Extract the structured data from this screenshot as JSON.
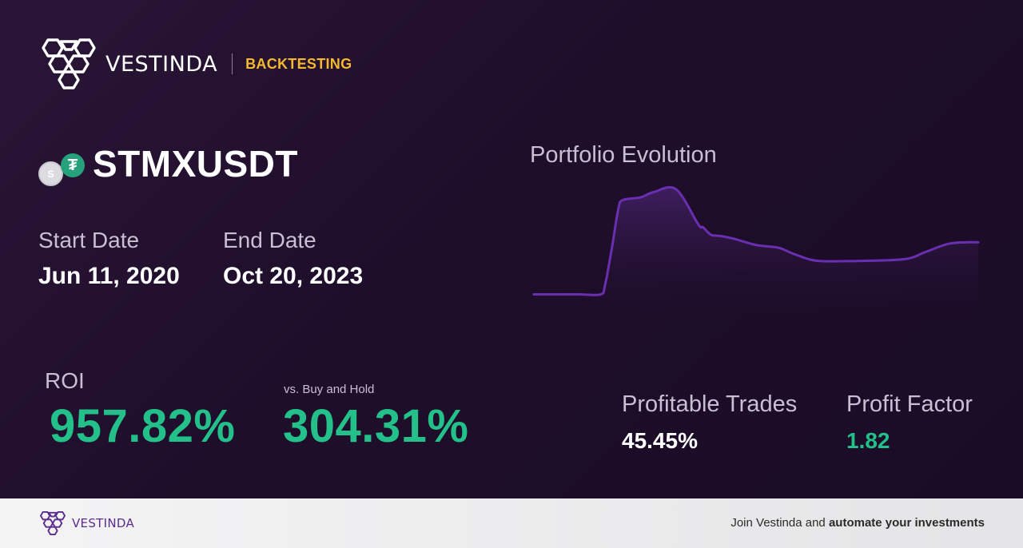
{
  "brand": {
    "name": "VESTINDA",
    "tag": "BACKTESTING",
    "tag_color": "#f5b82e"
  },
  "pair": {
    "symbol": "STMXUSDT",
    "base_icon_letter": "S",
    "quote_icon_letter": "₮",
    "quote_icon_color": "#26a17b"
  },
  "dates": {
    "start_label": "Start Date",
    "start_value": "Jun 11, 2020",
    "end_label": "End Date",
    "end_value": "Oct 20, 2023"
  },
  "roi": {
    "label": "ROI",
    "value": "957.82%",
    "bh_label": "vs. Buy and Hold",
    "bh_value": "304.31%",
    "color": "#23c08a"
  },
  "chart": {
    "title": "Portfolio Evolution"
  },
  "chart_data": {
    "type": "area",
    "title": "Portfolio Evolution",
    "xlabel": "",
    "ylabel": "",
    "line_color": "#6a2fb0",
    "x": [
      0,
      5,
      10,
      15,
      16,
      17.5,
      19,
      20,
      24,
      27,
      32,
      37,
      38,
      39,
      40,
      42,
      45,
      50,
      55,
      58,
      62,
      65,
      70,
      83,
      88,
      93,
      97,
      100
    ],
    "values": [
      100,
      100,
      100,
      100,
      110,
      150,
      195,
      205,
      208,
      214,
      217,
      178,
      175,
      170,
      166,
      165,
      162,
      155,
      152,
      146,
      139,
      137,
      137,
      139,
      147,
      156,
      158,
      158
    ],
    "ylim": [
      80,
      225
    ],
    "grid": false,
    "legend": "none"
  },
  "stats": {
    "profitable_label": "Profitable Trades",
    "profitable_value": "45.45%",
    "profit_factor_label": "Profit Factor",
    "profit_factor_value": "1.82",
    "profit_factor_color": "#23c08a"
  },
  "footer": {
    "brand_name": "VESTINDA",
    "cta_prefix": "Join Vestinda and ",
    "cta_bold": "automate your investments"
  }
}
